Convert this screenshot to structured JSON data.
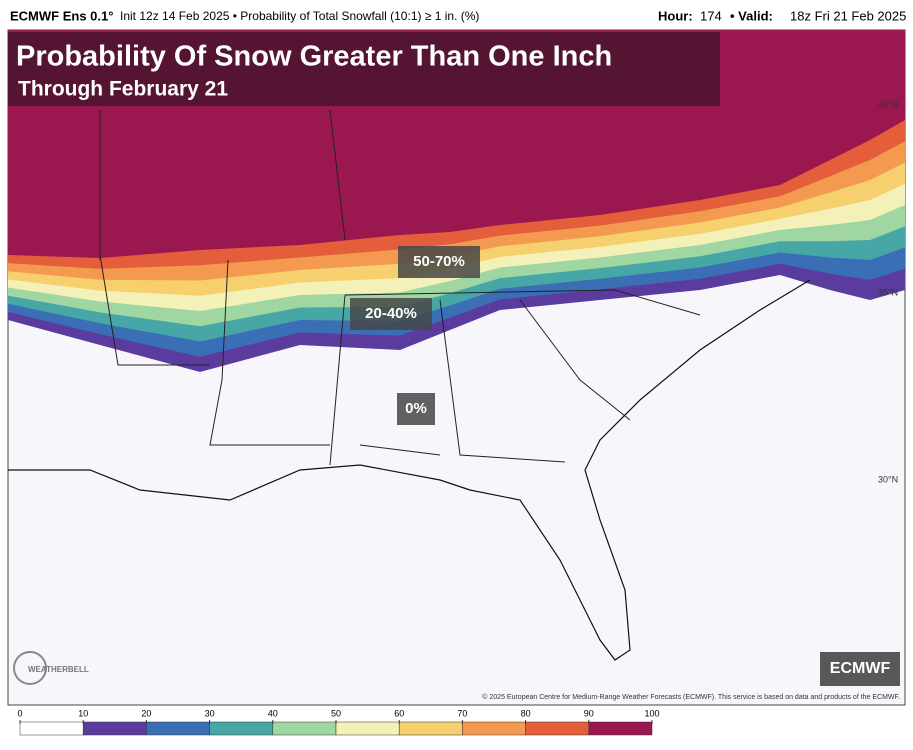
{
  "header": {
    "model": "ECMWF Ens 0.1°",
    "info": "Init 12z 14 Feb 2025 • Probability of Total Snowfall (10:1) ≥ 1 in. (%)",
    "hour_label": "Hour:",
    "hour": "174",
    "valid_label": "• Valid:",
    "valid": "18z Fri 21 Feb 2025"
  },
  "title": "Probability Of Snow Greater Than One Inch",
  "subtitle": "Through February 21",
  "labels": [
    "50-70%",
    "20-40%",
    "0%"
  ],
  "latitudes": [
    "40°N",
    "35°N",
    "30°N"
  ],
  "badge": "ECMWF",
  "logo": "WEATHERBELL",
  "copyright": "© 2025 European Centre for Medium-Range Weather Forecasts (ECMWF). This service is based on data and products of the ECMWF.",
  "colorbar": {
    "ticks": [
      0,
      10,
      20,
      30,
      40,
      50,
      60,
      70,
      80,
      90,
      100
    ],
    "colors": [
      "#ffffff",
      "#5b3c9e",
      "#3a6fb5",
      "#47a7a6",
      "#9fd6a2",
      "#f3f1b7",
      "#f6cf6e",
      "#f49a50",
      "#e45e3c",
      "#9b1750"
    ]
  }
}
